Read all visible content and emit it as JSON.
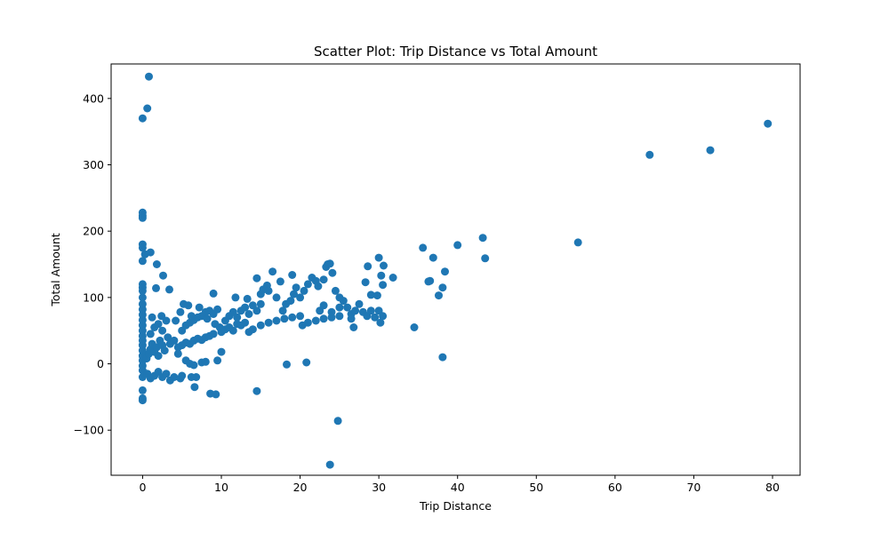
{
  "chart_data": {
    "type": "scatter",
    "title": "Scatter Plot: Trip Distance vs Total Amount",
    "xlabel": "Trip Distance",
    "ylabel": "Total Amount",
    "xlim": [
      -4,
      83.5
    ],
    "ylim": [
      -168,
      452
    ],
    "x_ticks": [
      0,
      10,
      20,
      30,
      40,
      50,
      60,
      70,
      80
    ],
    "y_ticks": [
      -100,
      0,
      100,
      200,
      300,
      400
    ],
    "grid": false,
    "legend": "none",
    "color": "#1f77b4",
    "series": [
      {
        "points": [
          [
            0.0,
            5
          ],
          [
            0.0,
            12
          ],
          [
            0.0,
            20
          ],
          [
            0.0,
            28
          ],
          [
            0.0,
            35
          ],
          [
            0.0,
            42
          ],
          [
            0.0,
            50
          ],
          [
            0.0,
            58
          ],
          [
            0.0,
            66
          ],
          [
            0.0,
            74
          ],
          [
            0.0,
            82
          ],
          [
            0.0,
            90
          ],
          [
            0.0,
            -3
          ],
          [
            0.0,
            -10
          ],
          [
            0.0,
            -20
          ],
          [
            0.0,
            -40
          ],
          [
            0.0,
            -52
          ],
          [
            0.0,
            -55
          ],
          [
            0.0,
            100
          ],
          [
            0.0,
            110
          ],
          [
            0.0,
            115
          ],
          [
            0.0,
            120
          ],
          [
            0.0,
            155
          ],
          [
            0.0,
            175
          ],
          [
            0.0,
            180
          ],
          [
            0.0,
            220
          ],
          [
            0.0,
            223
          ],
          [
            0.0,
            228
          ],
          [
            0.0,
            370
          ],
          [
            0.3,
            165
          ],
          [
            0.6,
            385
          ],
          [
            0.8,
            433
          ],
          [
            1.0,
            168
          ],
          [
            1.8,
            150
          ],
          [
            1.7,
            114
          ],
          [
            2.6,
            133
          ],
          [
            3.4,
            112
          ],
          [
            0.5,
            8
          ],
          [
            0.8,
            15
          ],
          [
            1.0,
            22
          ],
          [
            1.2,
            30
          ],
          [
            1.5,
            18
          ],
          [
            1.8,
            25
          ],
          [
            2.0,
            12
          ],
          [
            2.2,
            35
          ],
          [
            2.5,
            28
          ],
          [
            2.8,
            20
          ],
          [
            1.0,
            45
          ],
          [
            1.5,
            55
          ],
          [
            2.0,
            60
          ],
          [
            2.5,
            50
          ],
          [
            3.0,
            65
          ],
          [
            1.2,
            70
          ],
          [
            2.4,
            72
          ],
          [
            3.2,
            40
          ],
          [
            3.5,
            30
          ],
          [
            4.0,
            35
          ],
          [
            0.6,
            -15
          ],
          [
            1.0,
            -22
          ],
          [
            1.5,
            -18
          ],
          [
            2.0,
            -12
          ],
          [
            2.5,
            -20
          ],
          [
            3.0,
            -15
          ],
          [
            3.5,
            -25
          ],
          [
            4.0,
            -20
          ],
          [
            4.8,
            -22
          ],
          [
            5.0,
            -18
          ],
          [
            4.5,
            25
          ],
          [
            5.0,
            28
          ],
          [
            5.5,
            32
          ],
          [
            6.0,
            30
          ],
          [
            6.5,
            35
          ],
          [
            7.0,
            38
          ],
          [
            7.5,
            36
          ],
          [
            8.0,
            40
          ],
          [
            8.5,
            42
          ],
          [
            9.0,
            45
          ],
          [
            5.0,
            50
          ],
          [
            5.5,
            58
          ],
          [
            6.0,
            62
          ],
          [
            6.5,
            66
          ],
          [
            7.0,
            70
          ],
          [
            7.5,
            72
          ],
          [
            8.0,
            78
          ],
          [
            8.5,
            80
          ],
          [
            9.0,
            75
          ],
          [
            9.5,
            82
          ],
          [
            4.2,
            65
          ],
          [
            4.8,
            78
          ],
          [
            5.2,
            90
          ],
          [
            5.8,
            88
          ],
          [
            6.2,
            72
          ],
          [
            7.2,
            85
          ],
          [
            8.2,
            68
          ],
          [
            9.2,
            60
          ],
          [
            9.8,
            55
          ],
          [
            4.5,
            15
          ],
          [
            5.5,
            5
          ],
          [
            6.0,
            0
          ],
          [
            6.5,
            -2
          ],
          [
            7.5,
            2
          ],
          [
            8.0,
            3
          ],
          [
            6.8,
            -20
          ],
          [
            6.2,
            -20
          ],
          [
            6.6,
            -35
          ],
          [
            8.6,
            -45
          ],
          [
            9.3,
            -46
          ],
          [
            9.5,
            5
          ],
          [
            10.0,
            18
          ],
          [
            9.0,
            106
          ],
          [
            10.0,
            48
          ],
          [
            10.5,
            52
          ],
          [
            11.0,
            55
          ],
          [
            11.5,
            50
          ],
          [
            12.0,
            60
          ],
          [
            12.5,
            58
          ],
          [
            13.0,
            62
          ],
          [
            10.5,
            65
          ],
          [
            11.0,
            72
          ],
          [
            11.5,
            78
          ],
          [
            12.0,
            70
          ],
          [
            12.5,
            80
          ],
          [
            13.0,
            85
          ],
          [
            13.5,
            75
          ],
          [
            14.0,
            88
          ],
          [
            14.5,
            80
          ],
          [
            15.0,
            90
          ],
          [
            11.8,
            100
          ],
          [
            13.3,
            98
          ],
          [
            14.5,
            129
          ],
          [
            15.0,
            105
          ],
          [
            15.3,
            112
          ],
          [
            15.8,
            118
          ],
          [
            16.0,
            110
          ],
          [
            16.5,
            139
          ],
          [
            17.0,
            100
          ],
          [
            17.5,
            124
          ],
          [
            13.5,
            48
          ],
          [
            14.0,
            52
          ],
          [
            15.0,
            58
          ],
          [
            16.0,
            62
          ],
          [
            17.0,
            65
          ],
          [
            18.0,
            68
          ],
          [
            19.0,
            70
          ],
          [
            20.0,
            72
          ],
          [
            14.5,
            -41
          ],
          [
            18.3,
            -1
          ],
          [
            17.8,
            80
          ],
          [
            18.2,
            90
          ],
          [
            18.8,
            95
          ],
          [
            19.2,
            105
          ],
          [
            19.5,
            115
          ],
          [
            19.0,
            134
          ],
          [
            20.0,
            100
          ],
          [
            20.5,
            110
          ],
          [
            21.0,
            120
          ],
          [
            21.5,
            130
          ],
          [
            20.3,
            58
          ],
          [
            21.0,
            62
          ],
          [
            22.0,
            65
          ],
          [
            23.0,
            68
          ],
          [
            24.0,
            70
          ],
          [
            25.0,
            72
          ],
          [
            20.8,
            2
          ],
          [
            22.0,
            125
          ],
          [
            22.3,
            117
          ],
          [
            23.0,
            127
          ],
          [
            23.3,
            146
          ],
          [
            23.5,
            150
          ],
          [
            23.8,
            151
          ],
          [
            24.1,
            137
          ],
          [
            24.5,
            110
          ],
          [
            25.0,
            100
          ],
          [
            25.5,
            95
          ],
          [
            26.0,
            85
          ],
          [
            26.5,
            75
          ],
          [
            27.0,
            80
          ],
          [
            22.5,
            80
          ],
          [
            23.0,
            88
          ],
          [
            24.0,
            78
          ],
          [
            25.0,
            85
          ],
          [
            26.5,
            68
          ],
          [
            26.8,
            55
          ],
          [
            27.5,
            90
          ],
          [
            28.0,
            78
          ],
          [
            28.5,
            72
          ],
          [
            29.0,
            80
          ],
          [
            28.3,
            123
          ],
          [
            29.0,
            104
          ],
          [
            28.6,
            147
          ],
          [
            30.0,
            160
          ],
          [
            30.3,
            133
          ],
          [
            30.5,
            119
          ],
          [
            30.6,
            148
          ],
          [
            29.8,
            103
          ],
          [
            31.8,
            130
          ],
          [
            30.0,
            80
          ],
          [
            29.5,
            70
          ],
          [
            30.2,
            62
          ],
          [
            30.5,
            72
          ],
          [
            34.5,
            55
          ],
          [
            35.6,
            175
          ],
          [
            36.3,
            124
          ],
          [
            36.5,
            125
          ],
          [
            36.9,
            160
          ],
          [
            37.6,
            103
          ],
          [
            38.1,
            115
          ],
          [
            38.4,
            139
          ],
          [
            38.1,
            10
          ],
          [
            40.0,
            179
          ],
          [
            43.2,
            190
          ],
          [
            43.5,
            159
          ],
          [
            55.3,
            183
          ],
          [
            64.4,
            315
          ],
          [
            72.1,
            322
          ],
          [
            79.4,
            362
          ],
          [
            23.8,
            -152
          ],
          [
            24.8,
            -86
          ]
        ]
      }
    ]
  }
}
